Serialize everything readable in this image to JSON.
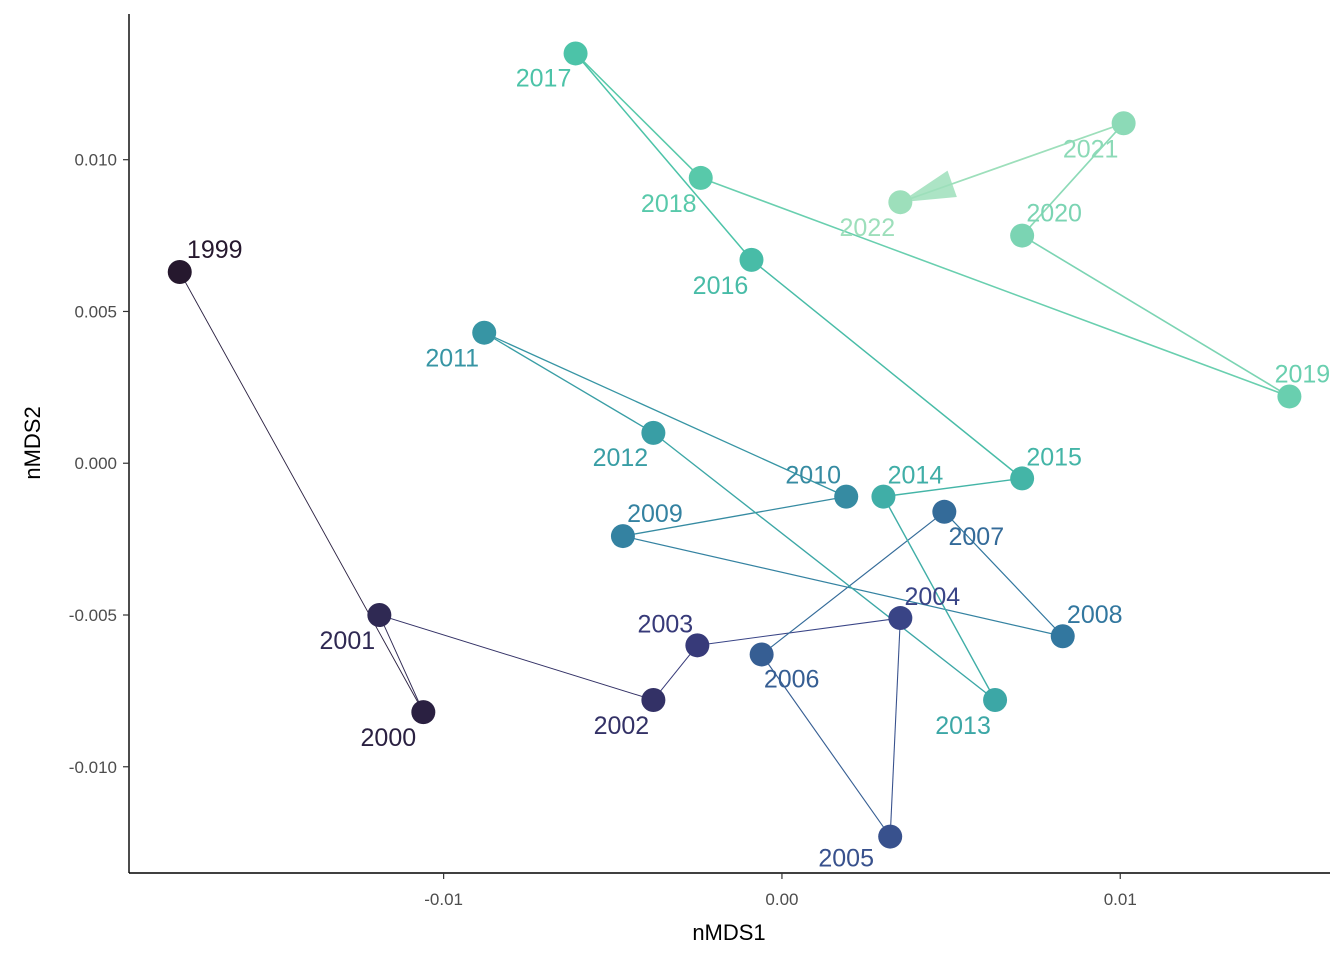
{
  "chart_data": {
    "type": "scatter",
    "title": "",
    "xlabel": "nMDS1",
    "ylabel": "nMDS2",
    "xlim": [
      -0.0193,
      0.0162
    ],
    "ylim": [
      -0.0135,
      0.0148
    ],
    "xticks": [
      -0.01,
      0.0,
      0.01
    ],
    "xtick_labels": [
      "-0.01",
      "0.00",
      "0.01"
    ],
    "yticks": [
      -0.01,
      -0.005,
      0.0,
      0.005,
      0.01
    ],
    "ytick_labels": [
      "-0.010",
      "-0.005",
      "0.000",
      "0.005",
      "0.010"
    ],
    "grid": false,
    "connected_path": true,
    "path_ends_with_arrow": true,
    "color_scale": [
      "#26182e",
      "#3a3f84",
      "#327aa0",
      "#3ba6a6",
      "#4ec6a8",
      "#9ddfbb"
    ],
    "points": [
      {
        "label": "1999",
        "x": -0.0178,
        "y": 0.0063
      },
      {
        "label": "2000",
        "x": -0.0106,
        "y": -0.0082
      },
      {
        "label": "2001",
        "x": -0.0119,
        "y": -0.005
      },
      {
        "label": "2002",
        "x": -0.0038,
        "y": -0.0078
      },
      {
        "label": "2003",
        "x": -0.0025,
        "y": -0.006
      },
      {
        "label": "2004",
        "x": 0.0035,
        "y": -0.0051
      },
      {
        "label": "2005",
        "x": 0.0032,
        "y": -0.0123
      },
      {
        "label": "2006",
        "x": -0.0006,
        "y": -0.0063
      },
      {
        "label": "2007",
        "x": 0.0048,
        "y": -0.0016
      },
      {
        "label": "2008",
        "x": 0.0083,
        "y": -0.0057
      },
      {
        "label": "2009",
        "x": -0.0047,
        "y": -0.0024
      },
      {
        "label": "2010",
        "x": 0.0019,
        "y": -0.0011
      },
      {
        "label": "2011",
        "x": -0.0088,
        "y": 0.0043
      },
      {
        "label": "2012",
        "x": -0.0038,
        "y": 0.001
      },
      {
        "label": "2013",
        "x": 0.0063,
        "y": -0.0078
      },
      {
        "label": "2014",
        "x": 0.003,
        "y": -0.0011
      },
      {
        "label": "2015",
        "x": 0.0071,
        "y": -0.0005
      },
      {
        "label": "2016",
        "x": -0.0009,
        "y": 0.0067
      },
      {
        "label": "2017",
        "x": -0.0061,
        "y": 0.0135
      },
      {
        "label": "2018",
        "x": -0.0024,
        "y": 0.0094
      },
      {
        "label": "2019",
        "x": 0.015,
        "y": 0.0022
      },
      {
        "label": "2020",
        "x": 0.0071,
        "y": 0.0075
      },
      {
        "label": "2021",
        "x": 0.0101,
        "y": 0.0112
      },
      {
        "label": "2022",
        "x": 0.0035,
        "y": 0.0086
      }
    ]
  }
}
